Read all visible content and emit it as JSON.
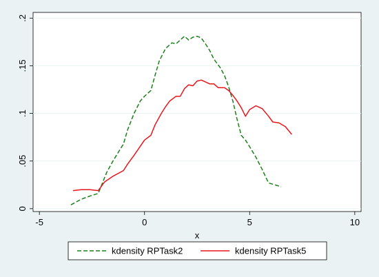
{
  "chart_data": {
    "type": "line",
    "title": "",
    "xlabel": "x",
    "ylabel": "",
    "xlim": [
      -5.3,
      10.3
    ],
    "ylim": [
      -0.003,
      0.206
    ],
    "xticks": [
      -5,
      0,
      5,
      10
    ],
    "xtick_labels": [
      "-5",
      "0",
      "5",
      "10"
    ],
    "yticks": [
      0,
      0.05,
      0.1,
      0.15,
      0.2
    ],
    "ytick_labels": [
      "0",
      ".05",
      ".1",
      ".15",
      ".2"
    ],
    "grid": "horizontal",
    "legend_position": "bottom",
    "series": [
      {
        "name": "kdensity RPTask2",
        "color": "#1a7f1a",
        "dash": "dashed",
        "x": [
          -3.5,
          -3.0,
          -2.5,
          -2.2,
          -1.8,
          -1.5,
          -1.0,
          -0.8,
          -0.5,
          -0.2,
          0.0,
          0.3,
          0.5,
          0.7,
          1.0,
          1.3,
          1.5,
          1.7,
          1.9,
          2.1,
          2.3,
          2.5,
          2.7,
          2.9,
          3.1,
          3.3,
          3.6,
          3.8,
          4.0,
          4.2,
          4.4,
          4.6,
          4.8,
          5.0,
          5.3,
          5.6,
          5.9,
          6.2,
          6.5
        ],
        "y": [
          0.004,
          0.01,
          0.014,
          0.016,
          0.038,
          0.05,
          0.068,
          0.083,
          0.1,
          0.113,
          0.118,
          0.124,
          0.14,
          0.155,
          0.168,
          0.174,
          0.173,
          0.177,
          0.181,
          0.177,
          0.18,
          0.181,
          0.179,
          0.173,
          0.166,
          0.157,
          0.148,
          0.14,
          0.128,
          0.113,
          0.094,
          0.077,
          0.072,
          0.065,
          0.054,
          0.041,
          0.027,
          0.025,
          0.023
        ]
      },
      {
        "name": "kdensity RPTask5",
        "color": "#e8141b",
        "dash": "solid",
        "x": [
          -3.4,
          -3.0,
          -2.6,
          -2.2,
          -1.9,
          -1.5,
          -1.0,
          -0.8,
          -0.5,
          0.0,
          0.3,
          0.5,
          0.8,
          1.0,
          1.2,
          1.5,
          1.7,
          1.9,
          2.1,
          2.3,
          2.5,
          2.7,
          2.9,
          3.1,
          3.3,
          3.5,
          3.8,
          4.0,
          4.2,
          4.4,
          4.6,
          4.8,
          5.0,
          5.3,
          5.6,
          5.9,
          6.1,
          6.4,
          6.7,
          7.0
        ],
        "y": [
          0.019,
          0.02,
          0.02,
          0.019,
          0.028,
          0.034,
          0.04,
          0.047,
          0.056,
          0.072,
          0.077,
          0.088,
          0.1,
          0.107,
          0.113,
          0.118,
          0.118,
          0.126,
          0.13,
          0.129,
          0.134,
          0.135,
          0.133,
          0.131,
          0.131,
          0.127,
          0.127,
          0.124,
          0.119,
          0.113,
          0.106,
          0.097,
          0.104,
          0.108,
          0.105,
          0.097,
          0.091,
          0.09,
          0.086,
          0.078
        ]
      }
    ]
  }
}
